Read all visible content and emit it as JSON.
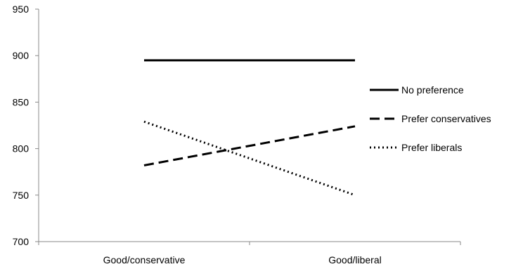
{
  "chart_data": {
    "type": "line",
    "title": "",
    "xlabel": "",
    "ylabel": "",
    "categories": [
      "Good/conservative",
      "Good/liberal"
    ],
    "ylim": [
      700,
      950
    ],
    "yticks": [
      700,
      750,
      800,
      850,
      900,
      950
    ],
    "grid": false,
    "legend_position": "right",
    "series": [
      {
        "name": "No preference",
        "values": [
          895,
          895
        ],
        "line_style": "solid",
        "color": "#000000"
      },
      {
        "name": "Prefer conservatives",
        "values": [
          782,
          824
        ],
        "line_style": "dashed",
        "color": "#000000"
      },
      {
        "name": "Prefer liberals",
        "values": [
          829,
          750
        ],
        "line_style": "dotted",
        "color": "#000000"
      }
    ]
  }
}
